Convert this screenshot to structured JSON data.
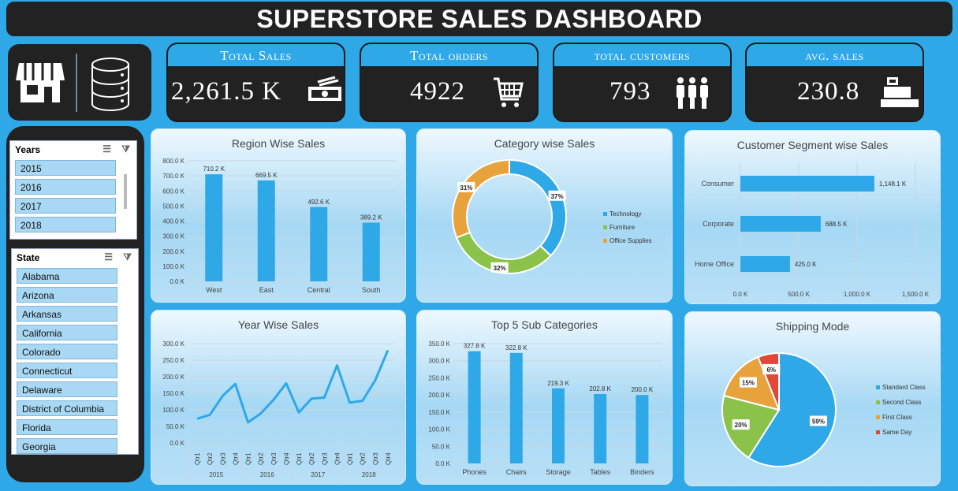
{
  "title": "SUPERSTORE SALES DASHBOARD",
  "kpis": [
    {
      "label": "Total Sales",
      "value": "2,261.5 K",
      "icon": "money-icon"
    },
    {
      "label": "Total orders",
      "value": "4922",
      "icon": "shopping-cart-icon"
    },
    {
      "label": "total customers",
      "value": "793",
      "icon": "people-icon"
    },
    {
      "label": "avg. sales",
      "value": "230.8",
      "icon": "cash-register-icon"
    }
  ],
  "slicers": {
    "years": {
      "title": "Years",
      "items": [
        "2015",
        "2016",
        "2017",
        "2018"
      ]
    },
    "state": {
      "title": "State",
      "items": [
        "Alabama",
        "Arizona",
        "Arkansas",
        "California",
        "Colorado",
        "Connecticut",
        "Delaware",
        "District of Columbia",
        "Florida",
        "Georgia"
      ]
    }
  },
  "colors": {
    "accent": "#2fa8e8",
    "dark": "#222222",
    "bar": "#2fa8e8",
    "green": "#8bc34a",
    "orange": "#e8a23c",
    "red": "#e0483a"
  },
  "chart_data": [
    {
      "id": "region",
      "type": "bar",
      "title": "Region Wise Sales",
      "categories": [
        "West",
        "East",
        "Central",
        "South"
      ],
      "values": [
        710.2,
        669.5,
        492.6,
        389.2
      ],
      "labels": [
        "710.2 K",
        "669.5 K",
        "492.6 K",
        "389.2 K"
      ],
      "yticks": [
        "0.0 K",
        "100.0 K",
        "200.0 K",
        "300.0 K",
        "400.0 K",
        "500.0 K",
        "600.0 K",
        "700.0 K",
        "800.0 K"
      ],
      "ylim": [
        0,
        800
      ],
      "grid": true
    },
    {
      "id": "category",
      "type": "pie",
      "donut": true,
      "title": "Category wise Sales",
      "categories": [
        "Technology",
        "Furniture",
        "Office Supplies"
      ],
      "values": [
        37,
        32,
        31
      ],
      "labels": [
        "37%",
        "32%",
        "31%"
      ],
      "legend": "right"
    },
    {
      "id": "segment",
      "type": "bar",
      "orientation": "horizontal",
      "title": "Customer Segment wise Sales",
      "categories": [
        "Consumer",
        "Corporate",
        "Home Office"
      ],
      "values": [
        1148.1,
        688.5,
        425.0
      ],
      "labels": [
        "1,148.1 K",
        "688.5 K",
        "425.0 K"
      ],
      "xticks": [
        "0.0 K",
        "500.0 K",
        "1,000.0 K",
        "1,500.0 K"
      ],
      "xlim": [
        0,
        1500
      ],
      "grid": true
    },
    {
      "id": "year",
      "type": "line",
      "title": "Year Wise Sales",
      "quarters": [
        "Qtr1",
        "Qtr2",
        "Qtr3",
        "Qtr4"
      ],
      "years": [
        "2015",
        "2016",
        "2017",
        "2018"
      ],
      "values": [
        73,
        85,
        142,
        178,
        62,
        89,
        130,
        180,
        92,
        134,
        137,
        234,
        122,
        127,
        189,
        280
      ],
      "yticks": [
        "0.0 K",
        "50.0 K",
        "100.0 K",
        "150.0 K",
        "200.0 K",
        "250.0 K",
        "300.0 K"
      ],
      "ylim": [
        0,
        300
      ],
      "grid": true
    },
    {
      "id": "subcat",
      "type": "bar",
      "title": "Top 5 Sub Categories",
      "categories": [
        "Phones",
        "Chairs",
        "Storage",
        "Tables",
        "Binders"
      ],
      "values": [
        327.8,
        322.8,
        219.3,
        202.8,
        200.0
      ],
      "labels": [
        "327.8 K",
        "322.8 K",
        "219.3 K",
        "202.8 K",
        "200.0 K"
      ],
      "yticks": [
        "0.0 K",
        "50.0 K",
        "100.0 K",
        "150.0 K",
        "200.0 K",
        "250.0 K",
        "300.0 K",
        "350.0 K"
      ],
      "ylim": [
        0,
        350
      ],
      "grid": true
    },
    {
      "id": "shipping",
      "type": "pie",
      "title": "Shipping Mode",
      "categories": [
        "Standard Class",
        "Second Class",
        "First Class",
        "Same Day"
      ],
      "values": [
        59,
        20,
        15,
        6
      ],
      "labels": [
        "59%",
        "20%",
        "15%",
        "6%"
      ],
      "legend": "right"
    }
  ]
}
